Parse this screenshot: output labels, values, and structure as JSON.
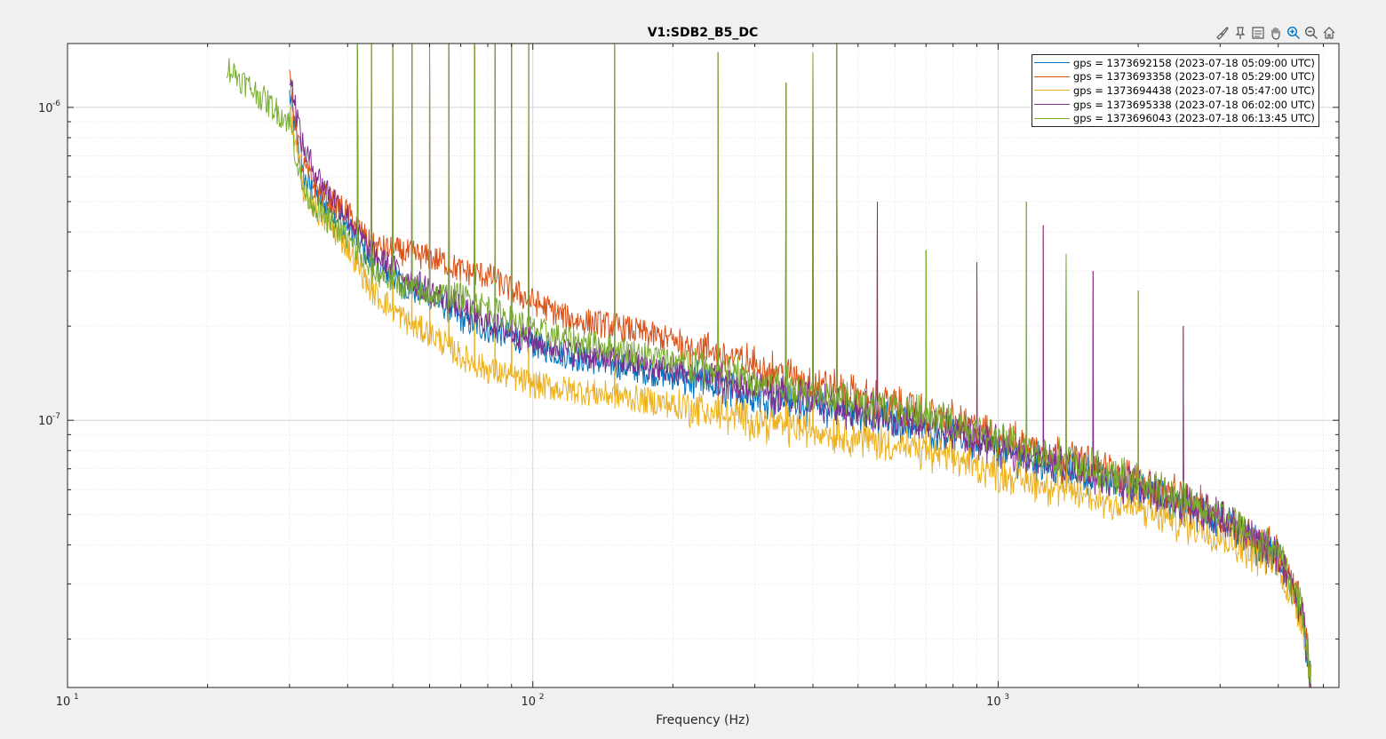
{
  "window": {
    "toolbar_icons": [
      "brush-icon",
      "datatip-icon",
      "legend-icon",
      "pan-hand-icon",
      "zoom-in-icon",
      "zoom-out-icon",
      "home-icon"
    ]
  },
  "chart_data": {
    "type": "line",
    "title": "V1:SDB2_B5_DC",
    "xlabel": "Frequency (Hz)",
    "ylabel": "",
    "xscale": "log",
    "yscale": "log",
    "xlim": [
      10,
      5400
    ],
    "ylim": [
      1.4e-08,
      1.6e-06
    ],
    "x_ticks": [
      {
        "value": 10,
        "base": "10",
        "exp": "1"
      },
      {
        "value": 100,
        "base": "10",
        "exp": "2"
      },
      {
        "value": 1000,
        "base": "10",
        "exp": "3"
      }
    ],
    "y_ticks": [
      {
        "value": 1e-06,
        "base": "10",
        "exp": "-6"
      },
      {
        "value": 1e-07,
        "base": "10",
        "exp": "-7"
      }
    ],
    "grid": true,
    "minor_grid": true,
    "legend_position": "top-right",
    "series": [
      {
        "name": "gps = 1373692158 (2023-07-18 05:09:00 UTC)",
        "color": "#0072BD",
        "offset": 0.0,
        "x": [
          30,
          32,
          35,
          40,
          45,
          55,
          60,
          65,
          70,
          80,
          90,
          100,
          120,
          150,
          200,
          300,
          500,
          800,
          1000,
          1500,
          2000,
          3000,
          4000,
          4500,
          4700
        ],
        "y": [
          1.1e-06,
          6e-07,
          5e-07,
          4.2e-07,
          3.2e-07,
          2.6e-07,
          2.5e-07,
          2.3e-07,
          2.1e-07,
          1.95e-07,
          1.85e-07,
          1.75e-07,
          1.6e-07,
          1.5e-07,
          1.38e-07,
          1.2e-07,
          1.05e-07,
          9e-08,
          8e-08,
          6.8e-08,
          6e-08,
          4.8e-08,
          3.6e-08,
          2.4e-08,
          1.5e-08
        ]
      },
      {
        "name": "gps = 1373693358 (2023-07-18 05:29:00 UTC)",
        "color": "#D95319",
        "offset": 0.04,
        "x": [
          30,
          32,
          35,
          40,
          45,
          55,
          60,
          65,
          70,
          80,
          90,
          100,
          120,
          150,
          200,
          300,
          500,
          800,
          1000,
          1500,
          2000,
          3000,
          4000,
          4500,
          4700
        ],
        "y": [
          1.2e-06,
          6.5e-07,
          5.3e-07,
          4.6e-07,
          3.6e-07,
          3.4e-07,
          3.3e-07,
          3.2e-07,
          3e-07,
          2.9e-07,
          2.6e-07,
          2.4e-07,
          2.1e-07,
          2e-07,
          1.8e-07,
          1.5e-07,
          1.2e-07,
          1e-07,
          8.8e-08,
          7.4e-08,
          6.4e-08,
          5e-08,
          3.8e-08,
          2.5e-08,
          1.5e-08
        ]
      },
      {
        "name": "gps = 1373694438 (2023-07-18 05:47:00 UTC)",
        "color": "#EDB120",
        "offset": -0.05,
        "x": [
          30,
          32,
          35,
          40,
          45,
          55,
          60,
          65,
          70,
          80,
          90,
          100,
          120,
          150,
          200,
          300,
          500,
          800,
          1000,
          1500,
          2000,
          3000,
          4000,
          4500,
          4700
        ],
        "y": [
          1e-06,
          5.5e-07,
          4.5e-07,
          3.6e-07,
          2.6e-07,
          2e-07,
          1.9e-07,
          1.75e-07,
          1.6e-07,
          1.45e-07,
          1.38e-07,
          1.3e-07,
          1.25e-07,
          1.2e-07,
          1.12e-07,
          1e-07,
          8.8e-08,
          7.6e-08,
          6.8e-08,
          5.8e-08,
          5.2e-08,
          4.3e-08,
          3.4e-08,
          2.3e-08,
          1.5e-08
        ]
      },
      {
        "name": "gps = 1373695338 (2023-07-18 06:02:00 UTC)",
        "color": "#7E2F8E",
        "offset": 0.01,
        "x": [
          30,
          32,
          35,
          40,
          45,
          55,
          60,
          65,
          70,
          80,
          90,
          100,
          120,
          150,
          200,
          300,
          500,
          800,
          1000,
          1500,
          2000,
          3000,
          4000,
          4500,
          4700
        ],
        "y": [
          1.3e-06,
          7.5e-07,
          5.8e-07,
          4.5e-07,
          3.4e-07,
          2.8e-07,
          2.6e-07,
          2.45e-07,
          2.3e-07,
          2.05e-07,
          1.9e-07,
          1.8e-07,
          1.65e-07,
          1.55e-07,
          1.45e-07,
          1.25e-07,
          1.08e-07,
          9.2e-08,
          8.2e-08,
          7e-08,
          6.1e-08,
          4.9e-08,
          3.7e-08,
          2.45e-08,
          1.5e-08
        ]
      },
      {
        "name": "gps = 1373696043 (2023-07-18 06:13:45 UTC)",
        "color": "#77AC30",
        "offset": 0.02,
        "x": [
          22,
          24,
          30,
          32,
          35,
          40,
          45,
          55,
          60,
          65,
          70,
          80,
          90,
          100,
          120,
          150,
          200,
          300,
          500,
          800,
          1000,
          1500,
          2000,
          3000,
          4000,
          4500,
          4700
        ],
        "y": [
          1.35e-06,
          1.2e-06,
          9e-07,
          5.5e-07,
          4.6e-07,
          3.8e-07,
          3e-07,
          2.6e-07,
          2.5e-07,
          2.5e-07,
          2.5e-07,
          2.3e-07,
          2.1e-07,
          1.95e-07,
          1.8e-07,
          1.7e-07,
          1.55e-07,
          1.35e-07,
          1.15e-07,
          9.8e-08,
          8.6e-08,
          7.2e-08,
          6.3e-08,
          5e-08,
          3.8e-08,
          2.5e-08,
          1.5e-08
        ]
      }
    ],
    "spikes": [
      {
        "x": 42,
        "y": 1.6e-06
      },
      {
        "x": 45,
        "y": 1.6e-06
      },
      {
        "x": 50,
        "y": 1.6e-06
      },
      {
        "x": 55,
        "y": 1.6e-06
      },
      {
        "x": 60,
        "y": 1.6e-06
      },
      {
        "x": 66,
        "y": 1.6e-06
      },
      {
        "x": 75,
        "y": 1.6e-06
      },
      {
        "x": 83,
        "y": 1.6e-06
      },
      {
        "x": 90,
        "y": 1.6e-06
      },
      {
        "x": 98,
        "y": 1.6e-06
      },
      {
        "x": 150,
        "y": 1.6e-06
      },
      {
        "x": 250,
        "y": 1.5e-06
      },
      {
        "x": 350,
        "y": 1.2e-06
      },
      {
        "x": 400,
        "y": 1.5e-06
      },
      {
        "x": 450,
        "y": 1.6e-06
      },
      {
        "x": 550,
        "y": 5e-07
      },
      {
        "x": 700,
        "y": 3.5e-07
      },
      {
        "x": 900,
        "y": 3.2e-07
      },
      {
        "x": 1150,
        "y": 5e-07
      },
      {
        "x": 1250,
        "y": 4.2e-07
      },
      {
        "x": 1400,
        "y": 3.4e-07
      },
      {
        "x": 1600,
        "y": 3e-07
      },
      {
        "x": 2000,
        "y": 2.6e-07
      },
      {
        "x": 2500,
        "y": 2e-07
      }
    ]
  }
}
